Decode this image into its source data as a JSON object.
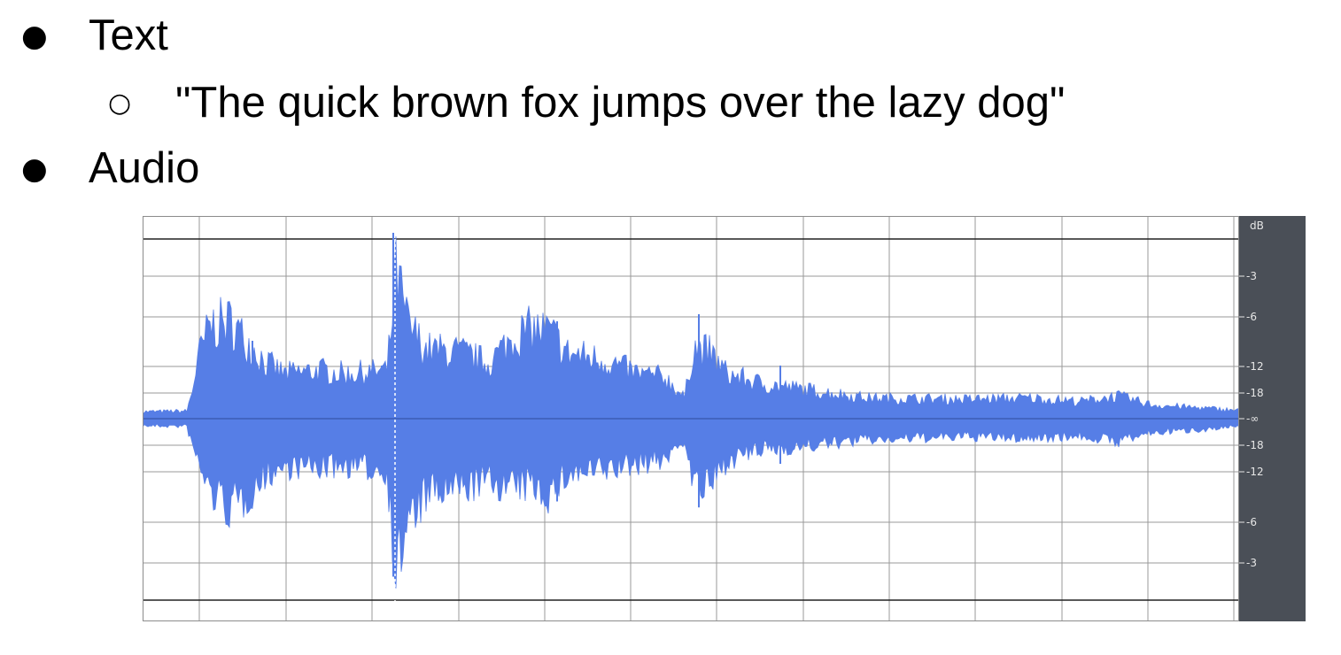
{
  "slide": {
    "bullets": [
      {
        "label": "Text"
      },
      {
        "label": "Audio"
      }
    ],
    "sub_bullet": "\"The quick brown fox jumps over the lazy dog\""
  },
  "waveform": {
    "colors": {
      "wave": "#567ee6",
      "grid": "#9a9a9a",
      "ruler_bg": "#4a4f57",
      "ruler_text": "#e6e6e6",
      "cursor": "#ffffff"
    },
    "ruler": {
      "unit": "dB",
      "ticks": [
        "-3",
        "-6",
        "-12",
        "-18",
        "-∞",
        "-18",
        "-12",
        "-6",
        "-3"
      ]
    }
  }
}
